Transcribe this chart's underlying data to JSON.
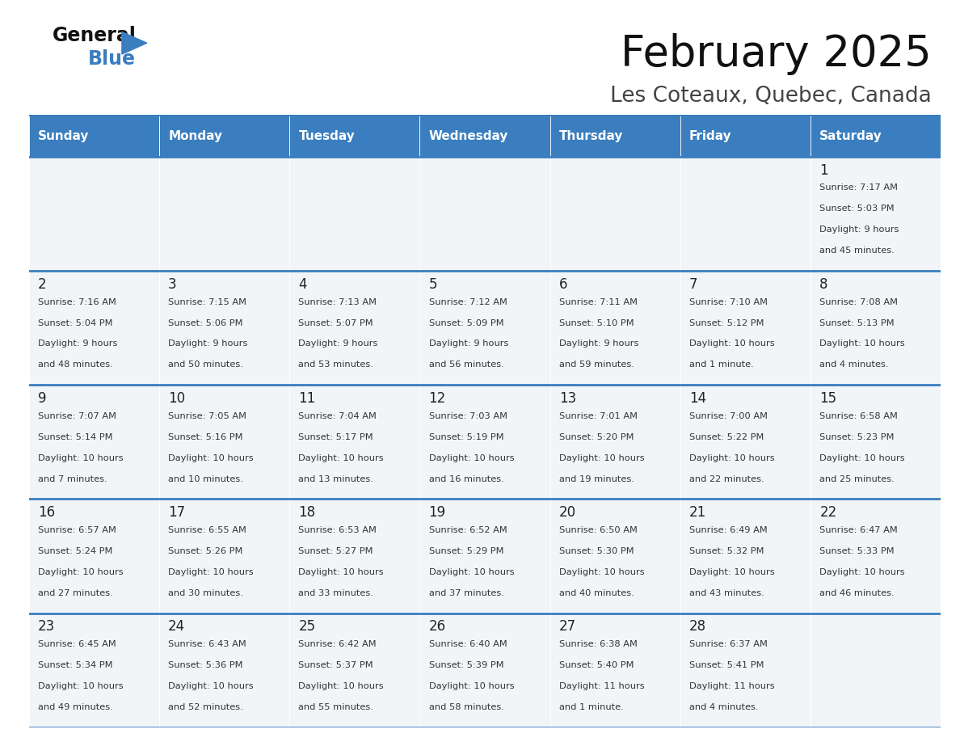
{
  "title": "February 2025",
  "subtitle": "Les Coteaux, Quebec, Canada",
  "header_bg": "#3a7ebf",
  "header_text_color": "#ffffff",
  "cell_bg": "#f2f5f8",
  "border_color": "#3a7ebf",
  "text_color": "#333333",
  "day_names": [
    "Sunday",
    "Monday",
    "Tuesday",
    "Wednesday",
    "Thursday",
    "Friday",
    "Saturday"
  ],
  "calendar": [
    [
      null,
      null,
      null,
      null,
      null,
      null,
      {
        "day": 1,
        "sunrise": "7:17 AM",
        "sunset": "5:03 PM",
        "daylight": "9 hours and 45 minutes"
      }
    ],
    [
      {
        "day": 2,
        "sunrise": "7:16 AM",
        "sunset": "5:04 PM",
        "daylight": "9 hours and 48 minutes"
      },
      {
        "day": 3,
        "sunrise": "7:15 AM",
        "sunset": "5:06 PM",
        "daylight": "9 hours and 50 minutes"
      },
      {
        "day": 4,
        "sunrise": "7:13 AM",
        "sunset": "5:07 PM",
        "daylight": "9 hours and 53 minutes"
      },
      {
        "day": 5,
        "sunrise": "7:12 AM",
        "sunset": "5:09 PM",
        "daylight": "9 hours and 56 minutes"
      },
      {
        "day": 6,
        "sunrise": "7:11 AM",
        "sunset": "5:10 PM",
        "daylight": "9 hours and 59 minutes"
      },
      {
        "day": 7,
        "sunrise": "7:10 AM",
        "sunset": "5:12 PM",
        "daylight": "10 hours and 1 minute"
      },
      {
        "day": 8,
        "sunrise": "7:08 AM",
        "sunset": "5:13 PM",
        "daylight": "10 hours and 4 minutes"
      }
    ],
    [
      {
        "day": 9,
        "sunrise": "7:07 AM",
        "sunset": "5:14 PM",
        "daylight": "10 hours and 7 minutes"
      },
      {
        "day": 10,
        "sunrise": "7:05 AM",
        "sunset": "5:16 PM",
        "daylight": "10 hours and 10 minutes"
      },
      {
        "day": 11,
        "sunrise": "7:04 AM",
        "sunset": "5:17 PM",
        "daylight": "10 hours and 13 minutes"
      },
      {
        "day": 12,
        "sunrise": "7:03 AM",
        "sunset": "5:19 PM",
        "daylight": "10 hours and 16 minutes"
      },
      {
        "day": 13,
        "sunrise": "7:01 AM",
        "sunset": "5:20 PM",
        "daylight": "10 hours and 19 minutes"
      },
      {
        "day": 14,
        "sunrise": "7:00 AM",
        "sunset": "5:22 PM",
        "daylight": "10 hours and 22 minutes"
      },
      {
        "day": 15,
        "sunrise": "6:58 AM",
        "sunset": "5:23 PM",
        "daylight": "10 hours and 25 minutes"
      }
    ],
    [
      {
        "day": 16,
        "sunrise": "6:57 AM",
        "sunset": "5:24 PM",
        "daylight": "10 hours and 27 minutes"
      },
      {
        "day": 17,
        "sunrise": "6:55 AM",
        "sunset": "5:26 PM",
        "daylight": "10 hours and 30 minutes"
      },
      {
        "day": 18,
        "sunrise": "6:53 AM",
        "sunset": "5:27 PM",
        "daylight": "10 hours and 33 minutes"
      },
      {
        "day": 19,
        "sunrise": "6:52 AM",
        "sunset": "5:29 PM",
        "daylight": "10 hours and 37 minutes"
      },
      {
        "day": 20,
        "sunrise": "6:50 AM",
        "sunset": "5:30 PM",
        "daylight": "10 hours and 40 minutes"
      },
      {
        "day": 21,
        "sunrise": "6:49 AM",
        "sunset": "5:32 PM",
        "daylight": "10 hours and 43 minutes"
      },
      {
        "day": 22,
        "sunrise": "6:47 AM",
        "sunset": "5:33 PM",
        "daylight": "10 hours and 46 minutes"
      }
    ],
    [
      {
        "day": 23,
        "sunrise": "6:45 AM",
        "sunset": "5:34 PM",
        "daylight": "10 hours and 49 minutes"
      },
      {
        "day": 24,
        "sunrise": "6:43 AM",
        "sunset": "5:36 PM",
        "daylight": "10 hours and 52 minutes"
      },
      {
        "day": 25,
        "sunrise": "6:42 AM",
        "sunset": "5:37 PM",
        "daylight": "10 hours and 55 minutes"
      },
      {
        "day": 26,
        "sunrise": "6:40 AM",
        "sunset": "5:39 PM",
        "daylight": "10 hours and 58 minutes"
      },
      {
        "day": 27,
        "sunrise": "6:38 AM",
        "sunset": "5:40 PM",
        "daylight": "11 hours and 1 minute"
      },
      {
        "day": 28,
        "sunrise": "6:37 AM",
        "sunset": "5:41 PM",
        "daylight": "11 hours and 4 minutes"
      },
      null
    ]
  ]
}
